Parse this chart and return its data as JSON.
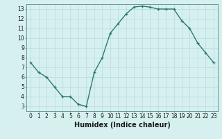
{
  "x": [
    0,
    1,
    2,
    3,
    4,
    5,
    6,
    7,
    8,
    9,
    10,
    11,
    12,
    13,
    14,
    15,
    16,
    17,
    18,
    19,
    20,
    21,
    22,
    23
  ],
  "y": [
    7.5,
    6.5,
    6.0,
    5.0,
    4.0,
    4.0,
    3.2,
    3.0,
    6.5,
    8.0,
    10.5,
    11.5,
    12.5,
    13.2,
    13.3,
    13.2,
    13.0,
    13.0,
    13.0,
    11.8,
    11.0,
    9.5,
    8.5,
    7.5
  ],
  "line_color": "#2d7a6e",
  "marker": "+",
  "marker_size": 3,
  "line_width": 1.0,
  "bg_color": "#d6f0f0",
  "grid_color": "#b8dada",
  "xlabel": "Humidex (Indice chaleur)",
  "xlim": [
    -0.5,
    23.5
  ],
  "ylim": [
    2.5,
    13.5
  ],
  "yticks": [
    3,
    4,
    5,
    6,
    7,
    8,
    9,
    10,
    11,
    12,
    13
  ],
  "xticks": [
    0,
    1,
    2,
    3,
    4,
    5,
    6,
    7,
    8,
    9,
    10,
    11,
    12,
    13,
    14,
    15,
    16,
    17,
    18,
    19,
    20,
    21,
    22,
    23
  ],
  "xlabel_fontsize": 7,
  "tick_fontsize": 5.5,
  "axis_label_color": "#1a1a1a",
  "spine_color": "#5a8a8a"
}
